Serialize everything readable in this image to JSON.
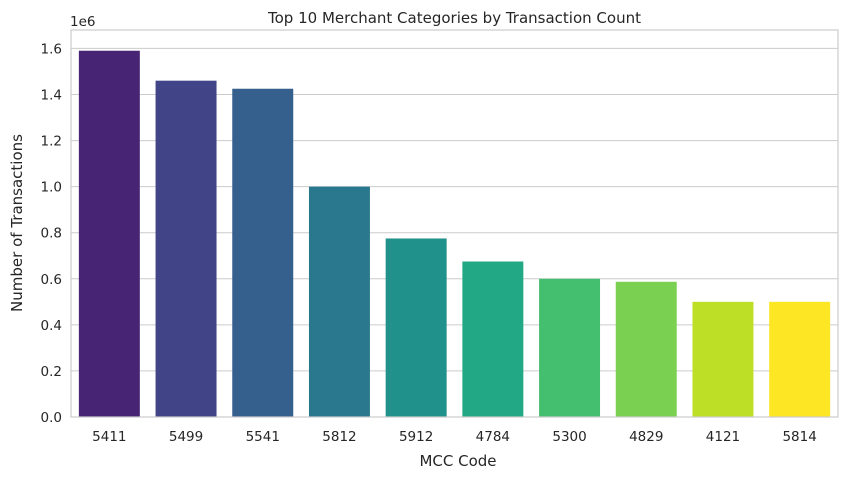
{
  "chart_data": {
    "type": "bar",
    "title": "Top 10 Merchant Categories by Transaction Count",
    "xlabel": "MCC Code",
    "ylabel": "Number of Transactions",
    "offset_text": "1e6",
    "categories": [
      "5411",
      "5499",
      "5541",
      "5812",
      "5912",
      "4784",
      "5300",
      "4829",
      "4121",
      "5814"
    ],
    "values": [
      1590000,
      1460000,
      1425000,
      1000000,
      775000,
      675000,
      600000,
      587000,
      500000,
      500000
    ],
    "ylim": [
      0,
      1680000
    ],
    "yticks": [
      0,
      200000,
      400000,
      600000,
      800000,
      1000000,
      1200000,
      1400000,
      1600000
    ],
    "ytick_labels": [
      "0.0",
      "0.2",
      "0.4",
      "0.6",
      "0.8",
      "1.0",
      "1.2",
      "1.4",
      "1.6"
    ],
    "grid": true,
    "colors": [
      "#482475",
      "#414487",
      "#355f8d",
      "#2a788e",
      "#21918c",
      "#22a884",
      "#44bf70",
      "#7ad151",
      "#bddf26",
      "#fde725"
    ]
  }
}
